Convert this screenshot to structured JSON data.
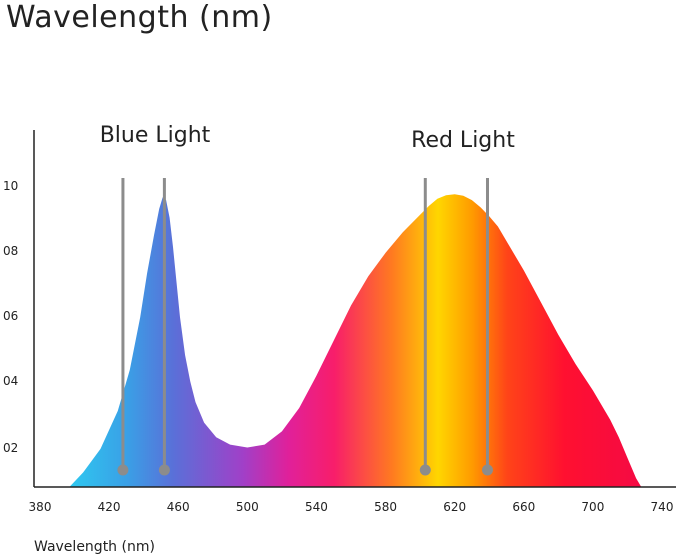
{
  "chart_data": {
    "type": "area",
    "title": "Wavelength (nm)",
    "xlabel": "Wavelength (nm)",
    "ylabel": "",
    "xlim": [
      380,
      740
    ],
    "ylim": [
      0,
      11
    ],
    "x_ticks": [
      "380",
      "420",
      "460",
      "500",
      "540",
      "580",
      "620",
      "660",
      "700",
      "740"
    ],
    "x_tick_values": [
      380,
      420,
      460,
      500,
      540,
      580,
      620,
      660,
      700,
      740
    ],
    "y_ticks": [
      "02",
      "04",
      "06",
      "08",
      "10"
    ],
    "y_tick_values": [
      2,
      4,
      6,
      8,
      10
    ],
    "grid": false,
    "series": [
      {
        "x": [
          397,
          405,
          415,
          425,
          432,
          438,
          442,
          446,
          449,
          451,
          453,
          455,
          457,
          459,
          461,
          464,
          467,
          470,
          475,
          482,
          490,
          500,
          510,
          520,
          530,
          540,
          550,
          560,
          570,
          580,
          590,
          600,
          605,
          610,
          615,
          620,
          625,
          630,
          635,
          640,
          645,
          650,
          660,
          670,
          680,
          690,
          700,
          710,
          715,
          720,
          725,
          728
        ],
        "y": [
          0.0,
          0.5,
          1.3,
          2.6,
          4.0,
          5.8,
          7.3,
          8.6,
          9.5,
          9.9,
          9.8,
          9.2,
          8.2,
          7.0,
          5.8,
          4.5,
          3.6,
          2.9,
          2.2,
          1.7,
          1.45,
          1.35,
          1.45,
          1.9,
          2.7,
          3.8,
          5.0,
          6.2,
          7.2,
          8.0,
          8.7,
          9.3,
          9.6,
          9.85,
          9.97,
          10.0,
          9.95,
          9.8,
          9.55,
          9.25,
          8.9,
          8.4,
          7.4,
          6.3,
          5.2,
          4.2,
          3.3,
          2.3,
          1.7,
          1.0,
          0.3,
          0.0
        ]
      }
    ],
    "annotations": [
      {
        "label": "Blue Light",
        "markers_x": [
          428,
          452
        ]
      },
      {
        "label": "Red Light",
        "markers_x": [
          603,
          639
        ]
      }
    ],
    "colors": {
      "spectrum_stops": [
        "#2ec8f0",
        "#3a9fe6",
        "#5a70d8",
        "#a040c8",
        "#e0209a",
        "#f81e6a",
        "#ff7a20",
        "#ffd600",
        "#ff9a00",
        "#ff4418",
        "#ff1030",
        "#f40a45"
      ],
      "marker_line": "#8c8c8c",
      "axis": "#222222"
    }
  }
}
